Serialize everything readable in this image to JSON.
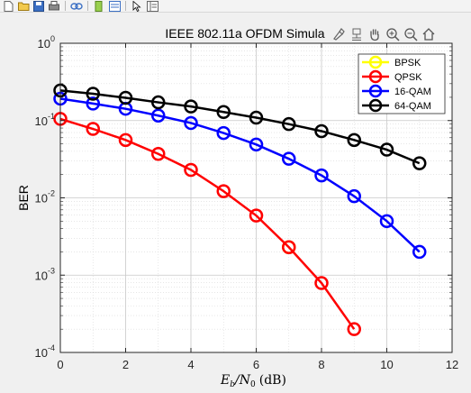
{
  "toolbar": {
    "buttons": [
      "new-figure-icon",
      "open-file-icon",
      "save-figure-icon",
      "print-figure-icon",
      "link-plot-icon",
      "insert-colorbar-icon",
      "insert-legend-icon",
      "edit-plot-icon",
      "property-inspector-icon"
    ]
  },
  "axes_toolbar": {
    "buttons": [
      "brush-icon",
      "data-tips-icon",
      "pan-icon",
      "zoom-in-icon",
      "zoom-out-icon",
      "restore-view-icon"
    ]
  },
  "chart_data": {
    "type": "line",
    "title": "IEEE 802.11a OFDM Simula",
    "xlabel_main": "E",
    "xlabel_sub1": "b",
    "xlabel_mid": "/N",
    "xlabel_sub2": "0",
    "xlabel_unit": "(dB)",
    "ylabel": "BER",
    "xlim": [
      0,
      12
    ],
    "ylim": [
      0.0001,
      1
    ],
    "yscale": "log",
    "grid": true,
    "minor_grid": true,
    "legend_position": "top-right",
    "xticks": [
      0,
      2,
      4,
      6,
      8,
      10,
      12
    ],
    "yticks": [
      {
        "value": 1,
        "base": "10",
        "exp": "0"
      },
      {
        "value": 0.1,
        "base": "10",
        "exp": "-1"
      },
      {
        "value": 0.01,
        "base": "10",
        "exp": "-2"
      },
      {
        "value": 0.001,
        "base": "10",
        "exp": "-3"
      },
      {
        "value": 0.0001,
        "base": "10",
        "exp": "-4"
      }
    ],
    "series": [
      {
        "name": "BPSK",
        "color": "#ffff00",
        "x": [
          7
        ],
        "values": [
          0.0023
        ]
      },
      {
        "name": "QPSK",
        "color": "#ff0000",
        "x": [
          0,
          1,
          2,
          3,
          4,
          5,
          6,
          7,
          8,
          9
        ],
        "values": [
          0.105,
          0.078,
          0.056,
          0.037,
          0.023,
          0.0122,
          0.0059,
          0.0023,
          0.00079,
          0.0002
        ]
      },
      {
        "name": "16-QAM",
        "color": "#0000ff",
        "x": [
          0,
          1,
          2,
          3,
          4,
          5,
          6,
          7,
          8,
          9,
          10,
          11
        ],
        "values": [
          0.192,
          0.166,
          0.142,
          0.116,
          0.093,
          0.069,
          0.049,
          0.032,
          0.0195,
          0.0105,
          0.005,
          0.002
        ]
      },
      {
        "name": "64-QAM",
        "color": "#000000",
        "x": [
          0,
          1,
          2,
          3,
          4,
          5,
          6,
          7,
          8,
          9,
          10,
          11
        ],
        "values": [
          0.245,
          0.222,
          0.197,
          0.172,
          0.152,
          0.129,
          0.109,
          0.09,
          0.073,
          0.056,
          0.042,
          0.028
        ]
      }
    ]
  }
}
